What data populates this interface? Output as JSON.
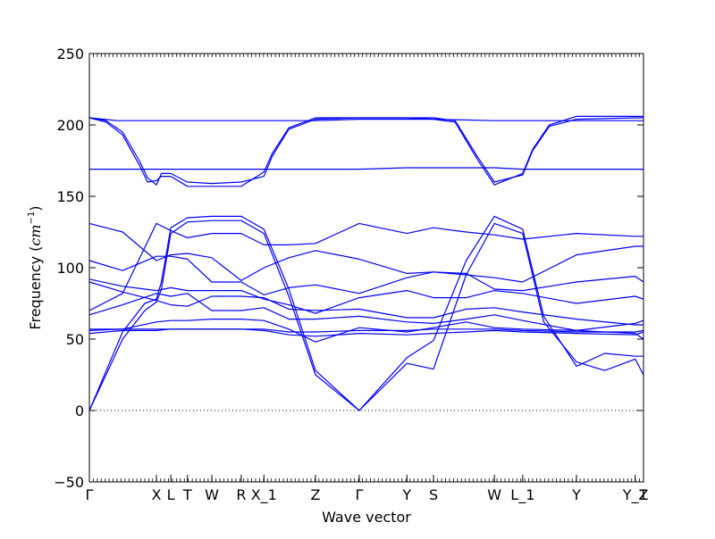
{
  "chart_data": {
    "type": "line",
    "title": "",
    "xlabel": "Wave vector",
    "ylabel_prefix": "Frequency (",
    "ylabel_unit_base": "cm",
    "ylabel_unit_exp": "−1",
    "ylabel_suffix": ")",
    "ylim": [
      -50,
      250
    ],
    "yticks": [
      -50,
      0,
      50,
      100,
      150,
      200,
      250
    ],
    "ytick_labels": [
      "−50",
      "0",
      "50",
      "100",
      "150",
      "200",
      "250"
    ],
    "xlim": [
      0,
      1
    ],
    "high_symmetry_points": [
      {
        "label": "Γ",
        "x": 0.0
      },
      {
        "label": "X",
        "x": 0.121
      },
      {
        "label": "L",
        "x": 0.147
      },
      {
        "label": "T",
        "x": 0.177
      },
      {
        "label": "W",
        "x": 0.221
      },
      {
        "label": "R",
        "x": 0.274
      },
      {
        "label": "X_1",
        "x": 0.315
      },
      {
        "label": "Z",
        "x": 0.408
      },
      {
        "label": "Γ",
        "x": 0.487
      },
      {
        "label": "Y",
        "x": 0.573
      },
      {
        "label": "S",
        "x": 0.621
      },
      {
        "label": "W",
        "x": 0.731
      },
      {
        "label": "L_1",
        "x": 0.782
      },
      {
        "label": "Y",
        "x": 0.879
      },
      {
        "label": "Y_1",
        "x": 0.985
      },
      {
        "label": "Z",
        "x": 1.0
      }
    ],
    "zero_line": true,
    "series_color": "#0000ff",
    "series": [
      {
        "x": [
          0,
          0.05,
          0.121,
          0.147,
          0.177,
          0.221,
          0.274,
          0.315,
          0.36,
          0.408,
          0.487,
          0.573,
          0.621,
          0.731,
          0.782,
          0.879,
          0.985,
          1
        ],
        "y": [
          205,
          203,
          203,
          203,
          203,
          203,
          203,
          203,
          203,
          203,
          204,
          204,
          204,
          203,
          203,
          203,
          203,
          203
        ]
      },
      {
        "x": [
          0,
          0.03,
          0.06,
          0.09,
          0.105,
          0.121,
          0.13,
          0.147,
          0.177,
          0.221,
          0.274,
          0.315,
          0.33,
          0.36,
          0.408,
          0.487,
          0.573,
          0.621,
          0.66,
          0.7,
          0.731,
          0.782,
          0.8,
          0.83,
          0.879,
          0.985,
          1
        ],
        "y": [
          205,
          203,
          195,
          175,
          163,
          158,
          166,
          166,
          160,
          159,
          160,
          164,
          178,
          197,
          204,
          205,
          205,
          205,
          203,
          178,
          160,
          165,
          182,
          199,
          204,
          205,
          205
        ]
      },
      {
        "x": [
          0,
          0.03,
          0.06,
          0.09,
          0.105,
          0.121,
          0.13,
          0.147,
          0.177,
          0.221,
          0.274,
          0.315,
          0.33,
          0.36,
          0.408,
          0.487,
          0.573,
          0.621,
          0.66,
          0.7,
          0.731,
          0.782,
          0.8,
          0.83,
          0.879,
          0.985,
          1
        ],
        "y": [
          205,
          202,
          193,
          172,
          160,
          161,
          164,
          164,
          157,
          157,
          157,
          167,
          180,
          198,
          205,
          205,
          205,
          204,
          202,
          176,
          158,
          166,
          183,
          200,
          206,
          206,
          206
        ]
      },
      {
        "x": [
          0,
          0.121,
          0.147,
          0.177,
          0.221,
          0.274,
          0.315,
          0.408,
          0.487,
          0.573,
          0.621,
          0.731,
          0.782,
          0.879,
          0.985,
          1
        ],
        "y": [
          169,
          169,
          169,
          169,
          169,
          169,
          169,
          169,
          169,
          170,
          170,
          170,
          169,
          169,
          169,
          169
        ]
      },
      {
        "x": [
          0,
          0.06,
          0.1,
          0.121,
          0.13,
          0.147,
          0.177,
          0.221,
          0.274,
          0.315,
          0.36,
          0.408,
          0.487,
          0.573,
          0.621,
          0.68,
          0.731,
          0.782,
          0.82,
          0.879,
          0.93,
          0.985,
          1
        ],
        "y": [
          0,
          55,
          75,
          78,
          90,
          128,
          135,
          136,
          136,
          127,
          85,
          28,
          0,
          37,
          49,
          105,
          136,
          127,
          66,
          31,
          40,
          38,
          38
        ]
      },
      {
        "x": [
          0,
          0.06,
          0.1,
          0.121,
          0.13,
          0.147,
          0.177,
          0.221,
          0.274,
          0.315,
          0.36,
          0.408,
          0.487,
          0.573,
          0.621,
          0.68,
          0.731,
          0.782,
          0.82,
          0.879,
          0.93,
          0.985,
          1
        ],
        "y": [
          0,
          50,
          70,
          76,
          85,
          124,
          132,
          133,
          133,
          124,
          80,
          25,
          0,
          33,
          29,
          95,
          131,
          124,
          62,
          34,
          28,
          36,
          25
        ]
      },
      {
        "x": [
          0,
          0.06,
          0.121,
          0.147,
          0.177,
          0.221,
          0.274,
          0.315,
          0.36,
          0.408,
          0.487,
          0.573,
          0.621,
          0.68,
          0.731,
          0.782,
          0.879,
          0.985,
          1
        ],
        "y": [
          70,
          82,
          131,
          126,
          121,
          124,
          124,
          116,
          116,
          117,
          131,
          124,
          128,
          125,
          123,
          120,
          124,
          122,
          122
        ]
      },
      {
        "x": [
          0,
          0.06,
          0.121,
          0.147,
          0.177,
          0.221,
          0.274,
          0.315,
          0.36,
          0.408,
          0.487,
          0.573,
          0.621,
          0.68,
          0.731,
          0.782,
          0.879,
          0.985,
          1
        ],
        "y": [
          131,
          125,
          105,
          109,
          110,
          107,
          91,
          100,
          107,
          112,
          106,
          96,
          97,
          95,
          93,
          90,
          109,
          115,
          115
        ]
      },
      {
        "x": [
          0,
          0.06,
          0.121,
          0.147,
          0.177,
          0.221,
          0.274,
          0.315,
          0.36,
          0.408,
          0.487,
          0.573,
          0.621,
          0.68,
          0.731,
          0.782,
          0.879,
          0.985,
          1
        ],
        "y": [
          105,
          98,
          108,
          108,
          106,
          90,
          90,
          81,
          86,
          88,
          82,
          93,
          97,
          96,
          85,
          84,
          90,
          94,
          90
        ]
      },
      {
        "x": [
          0,
          0.06,
          0.121,
          0.147,
          0.177,
          0.221,
          0.274,
          0.315,
          0.36,
          0.408,
          0.487,
          0.573,
          0.621,
          0.68,
          0.731,
          0.782,
          0.879,
          0.985,
          1
        ],
        "y": [
          92,
          87,
          84,
          86,
          84,
          84,
          84,
          78,
          74,
          68,
          79,
          84,
          79,
          79,
          84,
          82,
          75,
          80,
          78
        ]
      },
      {
        "x": [
          0,
          0.06,
          0.121,
          0.147,
          0.177,
          0.221,
          0.274,
          0.315,
          0.36,
          0.408,
          0.487,
          0.573,
          0.621,
          0.68,
          0.731,
          0.782,
          0.879,
          0.985,
          1
        ],
        "y": [
          90,
          83,
          77,
          74,
          73,
          80,
          80,
          79,
          71,
          70,
          71,
          65,
          65,
          71,
          72,
          69,
          64,
          60,
          60
        ]
      },
      {
        "x": [
          0,
          0.06,
          0.121,
          0.147,
          0.177,
          0.221,
          0.274,
          0.315,
          0.36,
          0.408,
          0.487,
          0.573,
          0.621,
          0.68,
          0.731,
          0.782,
          0.879,
          0.985,
          1
        ],
        "y": [
          67,
          74,
          82,
          80,
          82,
          70,
          70,
          72,
          64,
          64,
          66,
          62,
          61,
          64,
          67,
          63,
          56,
          54,
          50
        ]
      },
      {
        "x": [
          0,
          0.06,
          0.121,
          0.147,
          0.177,
          0.221,
          0.274,
          0.315,
          0.36,
          0.408,
          0.487,
          0.573,
          0.621,
          0.68,
          0.731,
          0.782,
          0.879,
          0.985,
          1
        ],
        "y": [
          57,
          57,
          62,
          63,
          63,
          64,
          64,
          63,
          57,
          48,
          58,
          55,
          58,
          62,
          58,
          57,
          56,
          61,
          63
        ]
      },
      {
        "x": [
          0,
          0.06,
          0.121,
          0.147,
          0.177,
          0.221,
          0.274,
          0.315,
          0.36,
          0.408,
          0.487,
          0.573,
          0.621,
          0.68,
          0.731,
          0.782,
          0.879,
          0.985,
          1
        ],
        "y": [
          54,
          56,
          56,
          57,
          57,
          57,
          57,
          56,
          53,
          52,
          54,
          53,
          54,
          55,
          56,
          55,
          54,
          53,
          55
        ]
      },
      {
        "x": [
          0,
          0.06,
          0.121,
          0.147,
          0.177,
          0.221,
          0.274,
          0.315,
          0.36,
          0.408,
          0.487,
          0.573,
          0.621,
          0.68,
          0.731,
          0.782,
          0.879,
          0.985,
          1
        ],
        "y": [
          56,
          57,
          57,
          57,
          57,
          57,
          57,
          57,
          55,
          55,
          56,
          56,
          57,
          57,
          57,
          56,
          55,
          55,
          56
        ]
      }
    ]
  }
}
